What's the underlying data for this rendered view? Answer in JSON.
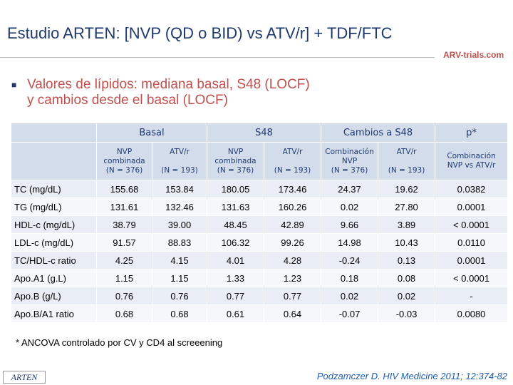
{
  "header": {
    "title": "Estudio ARTEN: [NVP (QD o BID) vs ATV/r] + TDF/FTC",
    "logo": "ARV-trials.com"
  },
  "bullet": {
    "line1": "Valores de lípidos: mediana basal, S48 (LOCF)",
    "line2": "y cambios desde el basal (LOCF)"
  },
  "table": {
    "groups": [
      "Basal",
      "S48",
      "Cambios a S48",
      "p*"
    ],
    "subheaders": [
      {
        "name": [
          "NVP",
          "combinada"
        ],
        "n": "(N = 376)"
      },
      {
        "name": [
          "ATV/r"
        ],
        "n": "(N = 193)"
      },
      {
        "name": [
          "NVP",
          "combinada"
        ],
        "n": "(N = 376)"
      },
      {
        "name": [
          "ATV/r"
        ],
        "n": "(N = 193)"
      },
      {
        "name": [
          "Combinación",
          "NVP"
        ],
        "n": "(N = 376)"
      },
      {
        "name": [
          "ATV/r"
        ],
        "n": "(N = 193)"
      },
      {
        "name": [
          "Combinación",
          "NVP vs ATV/r"
        ],
        "n": null
      }
    ],
    "rows": [
      {
        "label": "TC (mg/dL)",
        "cells": [
          "155.68",
          "153.84",
          "180.05",
          "173.46",
          "24.37",
          "19.62",
          "0.0382"
        ]
      },
      {
        "label": "TG (mg/dL)",
        "cells": [
          "131.61",
          "132.46",
          "131.63",
          "160.26",
          "0.02",
          "27.80",
          "0.0001"
        ]
      },
      {
        "label": "HDL-c (mg/dL)",
        "cells": [
          "38.79",
          "39.00",
          "48.45",
          "42.89",
          "9.66",
          "3.89",
          "< 0.0001"
        ]
      },
      {
        "label": "LDL-c (mg/dL)",
        "cells": [
          "91.57",
          "88.83",
          "106.32",
          "99.26",
          "14.98",
          "10.43",
          "0.0110"
        ]
      },
      {
        "label": "TC/HDL-c ratio",
        "cells": [
          "4.25",
          "4.15",
          "4.01",
          "4.28",
          "-0.24",
          "0.13",
          "0.0001"
        ]
      },
      {
        "label": "Apo.A1 (g.L)",
        "cells": [
          "1.15",
          "1.15",
          "1.33",
          "1.23",
          "0.18",
          "0.08",
          "< 0.0001"
        ]
      },
      {
        "label": "Apo.B (g/L)",
        "cells": [
          "0.76",
          "0.76",
          "0.77",
          "0.77",
          "0.02",
          "0.02",
          "-"
        ]
      },
      {
        "label": "Apo.B/A1 ratio",
        "cells": [
          "0.68",
          "0.68",
          "0.61",
          "0.64",
          "-0.07",
          "-0.03",
          "0.0080"
        ]
      }
    ]
  },
  "footnote": "* ANCOVA controlado por CV y CD4 al screeening",
  "footer": {
    "badge": "ARTEN",
    "citation": "Podzamczer D. HIV Medicine 2011; 12:374-82"
  }
}
